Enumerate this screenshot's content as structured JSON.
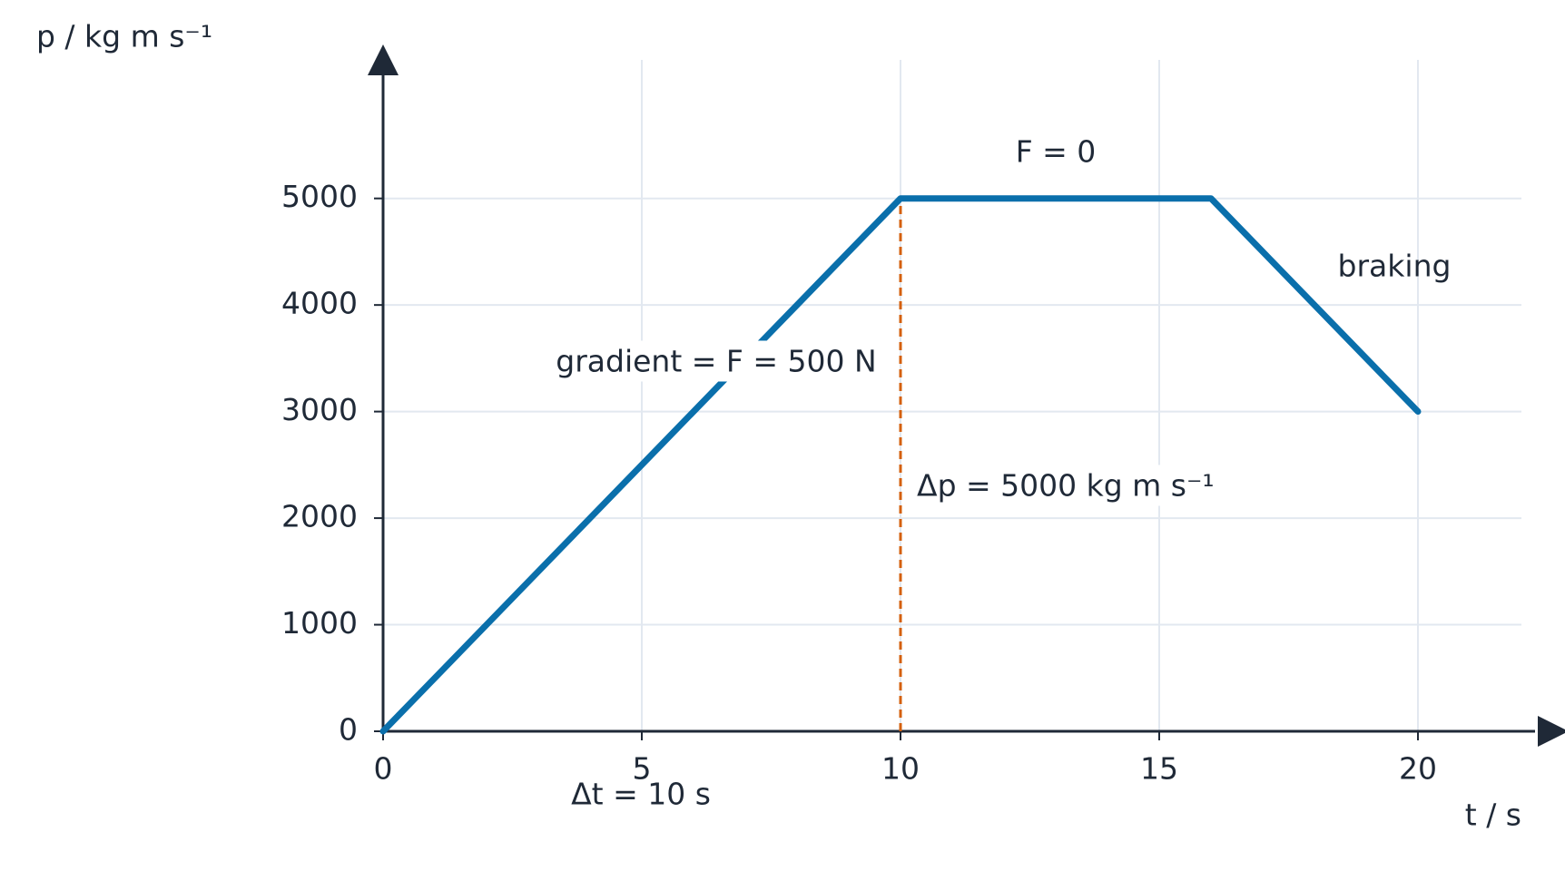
{
  "chart_data": {
    "type": "line",
    "ylabel": "p / kg m s⁻¹",
    "xlabel": "t / s",
    "x": [
      0,
      10,
      16,
      20
    ],
    "series": [
      {
        "color": "#0a6fab",
        "values": [
          0,
          5000,
          5000,
          3000
        ]
      }
    ],
    "xlim": [
      0,
      22
    ],
    "ylim": [
      0,
      6300
    ],
    "xticks": [
      0,
      5,
      10,
      15,
      20
    ],
    "yticks": [
      0,
      1000,
      2000,
      3000,
      4000,
      5000
    ],
    "grid": true,
    "vline": {
      "x": 10,
      "y": 5000,
      "color": "#d4600d"
    },
    "annotations": [
      {
        "text": "F = 0",
        "color": "#0a6fab"
      },
      {
        "text": "braking",
        "color": "#0a6fab"
      },
      {
        "text": "gradient = F = 500 N",
        "color": "#0a6fab"
      },
      {
        "text": "Δp = 5000 kg m s⁻¹",
        "color": "#d4600d"
      },
      {
        "text": "Δt = 10 s",
        "color": "#d4600d"
      }
    ]
  }
}
